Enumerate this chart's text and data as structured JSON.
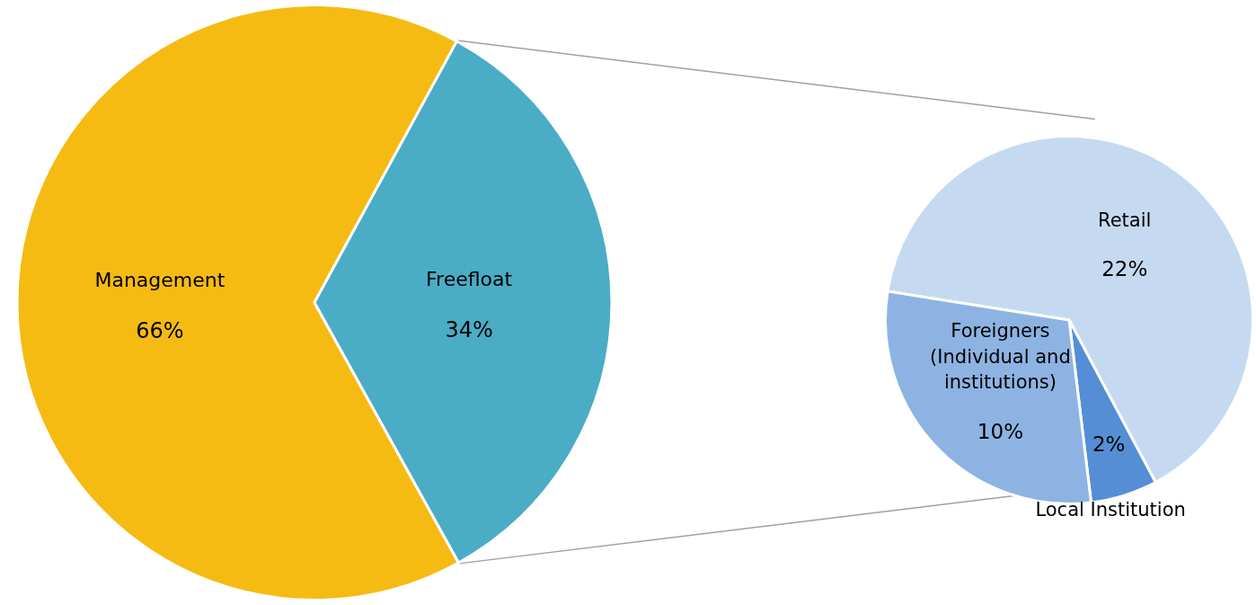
{
  "chart_data": [
    {
      "type": "pie",
      "categories": [
        "Management",
        "Freefloat"
      ],
      "values": [
        66,
        34
      ],
      "value_labels": [
        "66%",
        "34%"
      ],
      "colors": [
        "#f5bb12",
        "#4bacc6"
      ]
    },
    {
      "type": "pie",
      "categories": [
        "Retail",
        "Local Institution",
        "Foreigners (Individual and institutions)"
      ],
      "values": [
        22,
        2,
        10
      ],
      "value_labels": [
        "22%",
        "2%",
        "10%"
      ],
      "colors": [
        "#c5d9f1",
        "#558ed5",
        "#8db3e2"
      ]
    }
  ]
}
